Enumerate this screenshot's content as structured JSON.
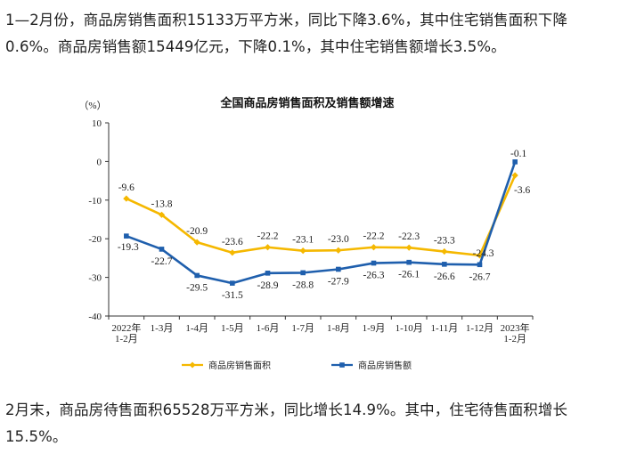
{
  "paragraphs": {
    "p1": "1—2月份，商品房销售面积15133万平方米，同比下降3.6%，其中住宅销售面积下降0.6%。商品房销售额15449亿元，下降0.1%，其中住宅销售额增长3.5%。",
    "p2": "2月末，商品房待售面积65528万平方米，同比增长14.9%。其中，住宅待售面积增长15.5%。"
  },
  "chart_data": {
    "type": "line",
    "title": "全国商品房销售面积及销售额增速",
    "ylabel": "（%）",
    "xlabel": "",
    "ylim": [
      -40,
      10
    ],
    "yticks": [
      "10",
      "0",
      "-10",
      "-20",
      "-30",
      "-40"
    ],
    "categories": [
      [
        "2022年",
        "1-2月"
      ],
      [
        "1-3月"
      ],
      [
        "1-4月"
      ],
      [
        "1-5月"
      ],
      [
        "1-6月"
      ],
      [
        "1-7月"
      ],
      [
        "1-8月"
      ],
      [
        "1-9月"
      ],
      [
        "1-10月"
      ],
      [
        "1-11月"
      ],
      [
        "1-12月"
      ],
      [
        "2023年",
        "1-2月"
      ]
    ],
    "series": [
      {
        "name": "商品房销售面积",
        "color": "#F5B800",
        "marker": "diamond",
        "values": [
          -9.6,
          -13.8,
          -20.9,
          -23.6,
          -22.2,
          -23.1,
          -23.0,
          -22.2,
          -22.3,
          -23.3,
          -24.3,
          -3.6
        ],
        "labels": [
          "-9.6",
          "-13.8",
          "-20.9",
          "-23.6",
          "-22.2",
          "-23.1",
          "-23.0",
          "-22.2",
          "-22.3",
          "-23.3",
          "-24.3",
          "-3.6"
        ]
      },
      {
        "name": "商品房销售额",
        "color": "#1F5FAD",
        "marker": "square",
        "values": [
          -19.3,
          -22.7,
          -29.5,
          -31.5,
          -28.9,
          -28.8,
          -27.9,
          -26.3,
          -26.1,
          -26.6,
          -26.7,
          -0.1
        ],
        "labels": [
          "-19.3",
          "-22.7",
          "-29.5",
          "-31.5",
          "-28.9",
          "-28.8",
          "-27.9",
          "-26.3",
          "-26.1",
          "-26.6",
          "-26.7",
          "-0.1"
        ]
      }
    ],
    "grid": false,
    "legend": "bottom"
  }
}
